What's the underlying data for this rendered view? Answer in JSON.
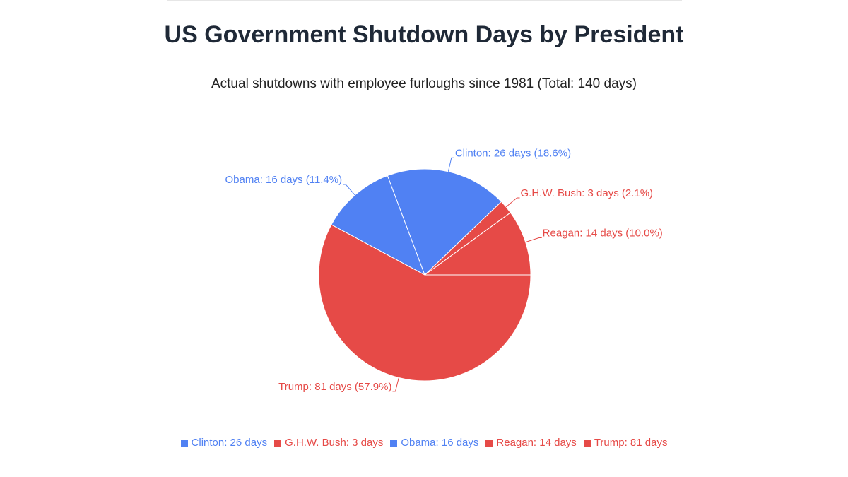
{
  "chart_data": {
    "type": "pie",
    "title": "US Government Shutdown Days by President",
    "subtitle": "Actual shutdowns with employee furloughs since 1981 (Total: 140 days)",
    "slices": [
      {
        "name": "Reagan",
        "value": 14,
        "percent": 10.0,
        "color": "#e64a47",
        "label": "Reagan: 14 days (10.0%)"
      },
      {
        "name": "G.H.W. Bush",
        "value": 3,
        "percent": 2.1,
        "color": "#e64a47",
        "label": "G.H.W. Bush: 3 days (2.1%)"
      },
      {
        "name": "Clinton",
        "value": 26,
        "percent": 18.6,
        "color": "#5081f3",
        "label": "Clinton: 26 days (18.6%)"
      },
      {
        "name": "Obama",
        "value": 16,
        "percent": 11.4,
        "color": "#5081f3",
        "label": "Obama: 16 days (11.4%)"
      },
      {
        "name": "Trump",
        "value": 81,
        "percent": 57.9,
        "color": "#e64a47",
        "label": "Trump: 81 days (57.9%)"
      }
    ],
    "legend": [
      {
        "label": "Clinton: 26 days",
        "color": "#5081f3"
      },
      {
        "label": "G.H.W. Bush: 3 days",
        "color": "#e64a47"
      },
      {
        "label": "Obama: 16 days",
        "color": "#5081f3"
      },
      {
        "label": "Reagan: 14 days",
        "color": "#e64a47"
      },
      {
        "label": "Trump: 81 days",
        "color": "#e64a47"
      }
    ],
    "legend_position": "bottom"
  }
}
